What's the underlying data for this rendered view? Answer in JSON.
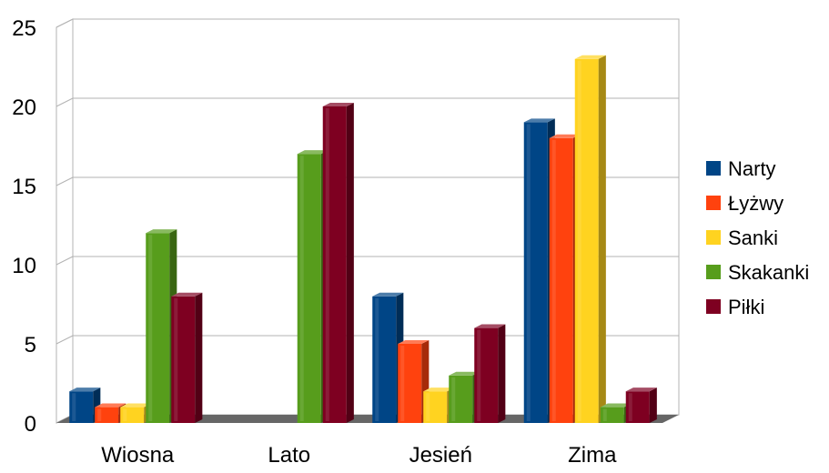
{
  "chart_data": {
    "type": "bar",
    "title": "",
    "xlabel": "",
    "ylabel": "",
    "categories": [
      "Wiosna",
      "Lato",
      "Jesień",
      "Zima"
    ],
    "ylim": [
      0,
      25
    ],
    "yticks": [
      0,
      5,
      10,
      15,
      20,
      25
    ],
    "grid": true,
    "legend_position": "right",
    "style": "3d-bars",
    "series": [
      {
        "name": "Narty",
        "color": "#004586",
        "values": [
          2,
          0,
          8,
          19
        ]
      },
      {
        "name": "Łyżwy",
        "color": "#ff420e",
        "values": [
          1,
          0,
          5,
          18
        ]
      },
      {
        "name": "Sanki",
        "color": "#ffd320",
        "values": [
          1,
          0,
          2,
          23
        ]
      },
      {
        "name": "Skakanki",
        "color": "#579d1c",
        "values": [
          12,
          17,
          3,
          1
        ]
      },
      {
        "name": "Piłki",
        "color": "#7e0021",
        "values": [
          8,
          20,
          6,
          2
        ]
      }
    ]
  }
}
